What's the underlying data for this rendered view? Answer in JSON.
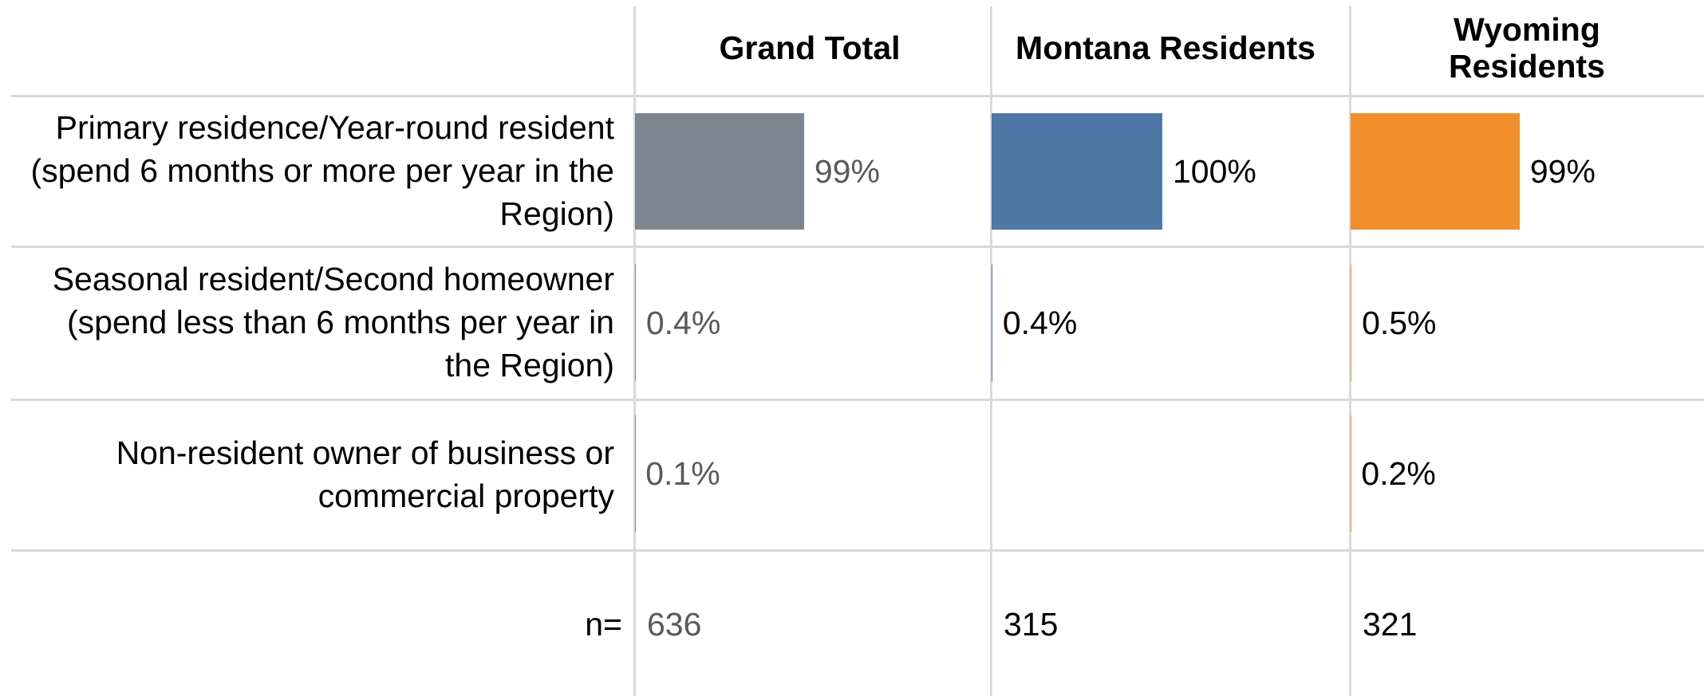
{
  "chart_data": {
    "type": "bar",
    "orientation": "horizontal",
    "categories": [
      "Primary residence/Year-round resident (spend 6 months or more per year in the Region)",
      "Seasonal resident/Second homeowner (spend less than 6 months per year in the Region)",
      "Non-resident owner of business or commercial property"
    ],
    "xlim": [
      0,
      100
    ],
    "n_label": "n=",
    "series": [
      {
        "name": "Grand Total",
        "color": "#7f8590",
        "values": [
          99,
          0.4,
          0.1
        ],
        "value_labels": [
          "99%",
          "0.4%",
          "0.1%"
        ],
        "n": 636
      },
      {
        "name": "Montana Residents",
        "color": "#4e79a7",
        "values": [
          100,
          0.4,
          null
        ],
        "value_labels": [
          "100%",
          "0.4%",
          null
        ],
        "n": 315
      },
      {
        "name": "Wyoming Residents",
        "color": "#f28e2b",
        "values": [
          99,
          0.5,
          0.2
        ],
        "value_labels": [
          "99%",
          "0.5%",
          "0.2%"
        ],
        "n": 321
      }
    ]
  }
}
